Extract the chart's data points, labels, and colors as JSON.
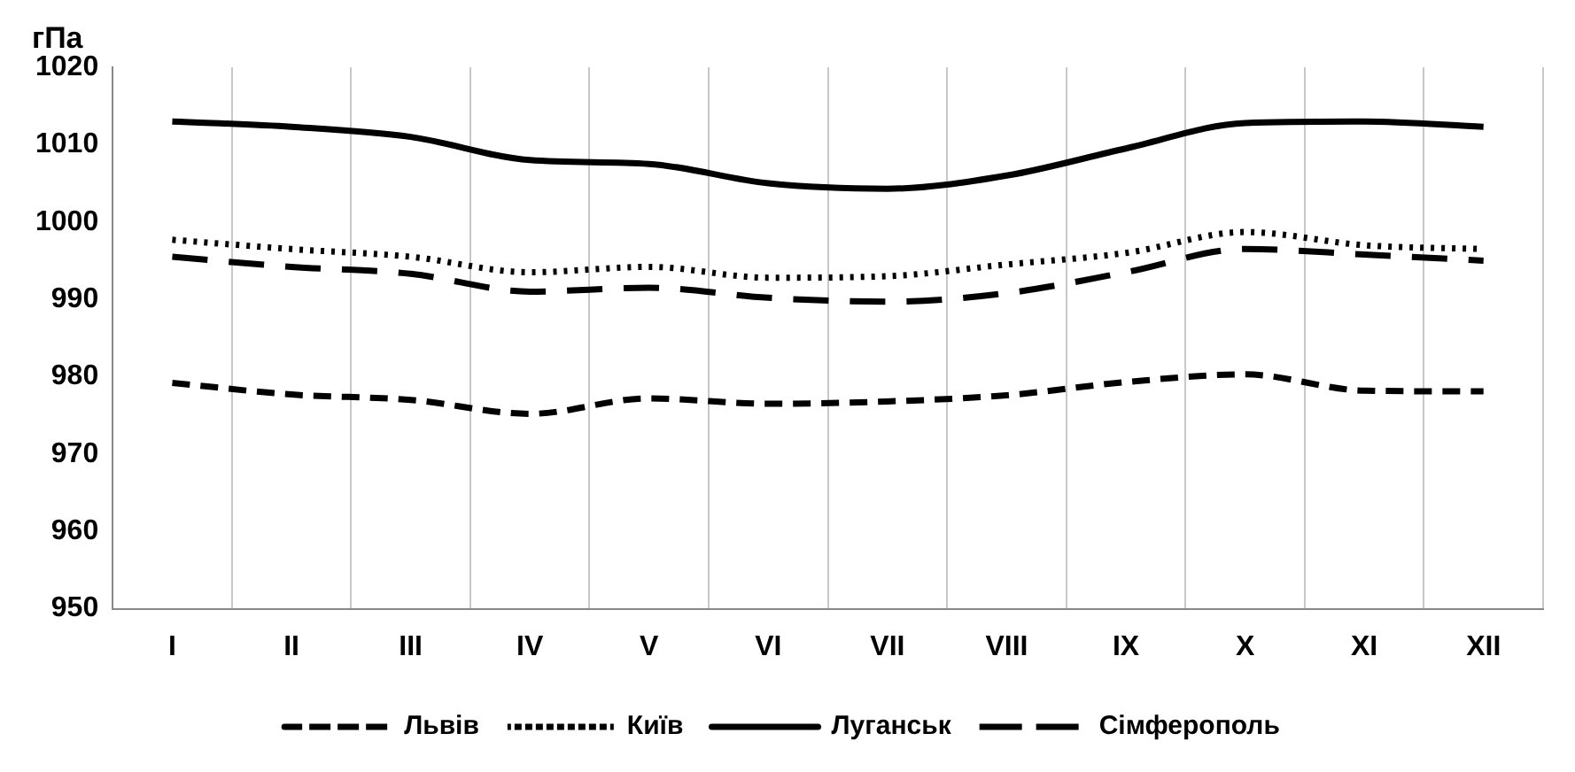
{
  "chart_data": {
    "type": "line",
    "ylabel": "гПа",
    "categories": [
      "I",
      "II",
      "III",
      "IV",
      "V",
      "VI",
      "VII",
      "VIII",
      "IX",
      "X",
      "XI",
      "XII"
    ],
    "series": [
      {
        "name": "Львів",
        "color": "#000000",
        "line_style": "dashed",
        "values": [
          979.2,
          977.7,
          977,
          975.2,
          977.2,
          976.5,
          976.8,
          977.6,
          979.3,
          980.3,
          978.2,
          978.1
        ]
      },
      {
        "name": "Київ",
        "color": "#000000",
        "line_style": "dotted",
        "values": [
          997.7,
          996.5,
          995.5,
          993.5,
          994.2,
          992.8,
          993,
          994.5,
          996,
          998.7,
          997,
          996.5
        ]
      },
      {
        "name": "Луганськ",
        "color": "#000000",
        "line_style": "solid",
        "values": [
          1013,
          1012.3,
          1011,
          1008,
          1007.5,
          1005,
          1004.3,
          1006,
          1009.5,
          1012.8,
          1013,
          1012.3
        ]
      },
      {
        "name": "Сімферополь",
        "color": "#000000",
        "line_style": "longdash",
        "values": [
          995.5,
          994.2,
          993.3,
          991,
          991.5,
          990.2,
          989.7,
          990.8,
          993.5,
          996.5,
          995.8,
          995
        ]
      }
    ],
    "ylim": [
      950,
      1020
    ],
    "yticks": [
      950,
      960,
      970,
      980,
      990,
      1000,
      1010,
      1020
    ],
    "grid": "x",
    "legend": "bottom",
    "marker": "none"
  }
}
